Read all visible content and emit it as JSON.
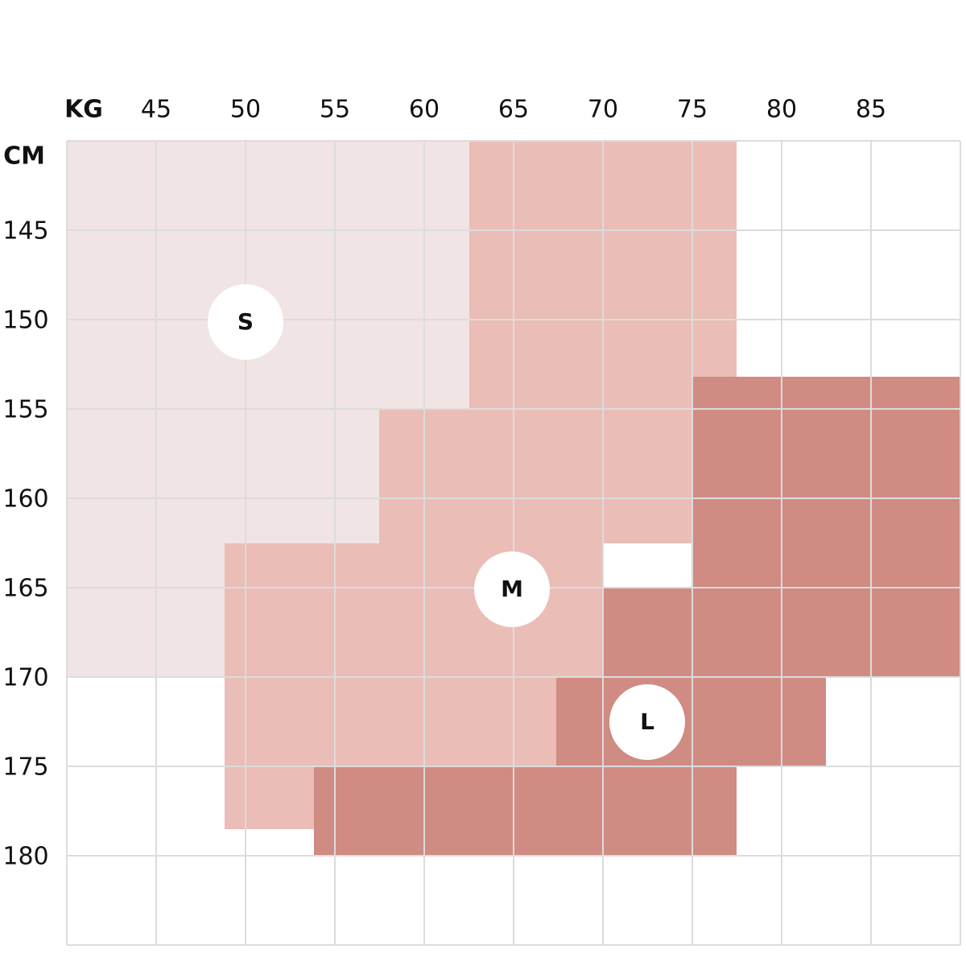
{
  "axes": {
    "x_unit": "KG",
    "y_unit": "CM",
    "x_labels": [
      45,
      50,
      55,
      60,
      65,
      70,
      75,
      80,
      85
    ],
    "y_labels": [
      145,
      150,
      155,
      160,
      165,
      170,
      175,
      180
    ]
  },
  "sizes": [
    "S",
    "M",
    "L"
  ]
}
